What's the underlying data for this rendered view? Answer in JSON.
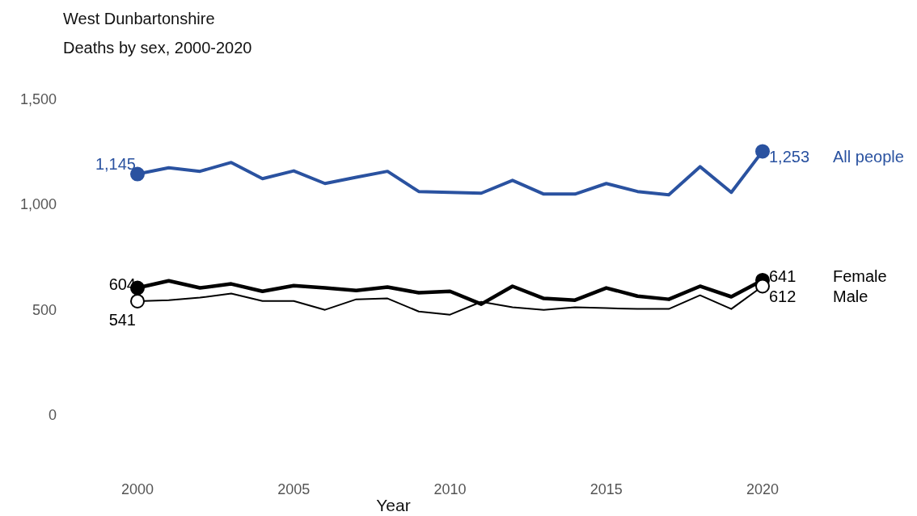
{
  "chart_data": {
    "type": "line",
    "title": "West Dunbartonshire",
    "subtitle": "Deaths by sex, 2000-2020",
    "xlabel": "Year",
    "x": [
      2000,
      2001,
      2002,
      2003,
      2004,
      2005,
      2006,
      2007,
      2008,
      2009,
      2010,
      2011,
      2012,
      2013,
      2014,
      2015,
      2016,
      2017,
      2018,
      2019,
      2020
    ],
    "xlim": [
      2000,
      2020
    ],
    "xticks": [
      2000,
      2005,
      2010,
      2015,
      2020
    ],
    "ylim": [
      0,
      1500
    ],
    "yticks": [
      0,
      {
        "value": 500,
        "label": "500"
      },
      {
        "value": 1000,
        "label": "1,000"
      },
      {
        "value": 1500,
        "label": "1,500"
      }
    ],
    "grid": false,
    "line_style": "solid",
    "series": [
      {
        "name": "All people",
        "color": "#2a52a0",
        "values": [
          1145,
          1175,
          1158,
          1200,
          1123,
          1160,
          1100,
          1130,
          1158,
          1062,
          1058,
          1054,
          1115,
          1050,
          1050,
          1100,
          1062,
          1046,
          1180,
          1058,
          1253
        ],
        "value_labels": [
          "1,145",
          null,
          null,
          null,
          null,
          null,
          null,
          null,
          null,
          null,
          null,
          null,
          null,
          null,
          null,
          null,
          null,
          null,
          null,
          null,
          "1,253"
        ]
      },
      {
        "name": "Female",
        "color": "#000000",
        "values": [
          604,
          638,
          604,
          623,
          588,
          615,
          604,
          592,
          608,
          581,
          588,
          527,
          612,
          554,
          546,
          604,
          565,
          550,
          612,
          562,
          641
        ],
        "value_labels": [
          "604",
          null,
          null,
          null,
          null,
          null,
          null,
          null,
          null,
          null,
          null,
          null,
          null,
          null,
          null,
          null,
          null,
          null,
          null,
          null,
          "641"
        ]
      },
      {
        "name": "Male",
        "color": "#000000",
        "values": [
          541,
          546,
          558,
          577,
          542,
          542,
          500,
          550,
          554,
          492,
          477,
          538,
          512,
          500,
          512,
          508,
          504,
          504,
          569,
          504,
          612
        ],
        "value_labels": [
          "541",
          null,
          null,
          null,
          null,
          null,
          null,
          null,
          null,
          null,
          null,
          null,
          null,
          null,
          null,
          null,
          null,
          null,
          null,
          null,
          "612"
        ]
      }
    ]
  }
}
